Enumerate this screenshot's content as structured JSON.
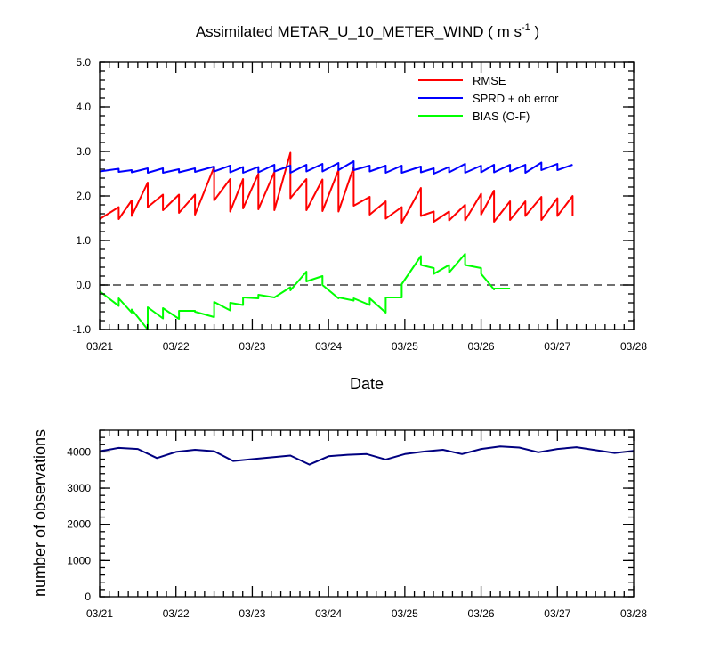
{
  "figure": {
    "title_main": "Assimilated METAR_U_10_METER_WIND ( m s",
    "title_sup": "-1",
    "title_end": " )"
  },
  "chart_data": [
    {
      "type": "line",
      "xlabel": "Date",
      "ylabel": "",
      "xlim": [
        0,
        7
      ],
      "ylim": [
        -1.0,
        5.0
      ],
      "x_tick_labels": [
        "03/21",
        "03/22",
        "03/23",
        "03/24",
        "03/25",
        "03/26",
        "03/27",
        "03/28"
      ],
      "y_tick_labels": [
        "-1.0",
        "0.0",
        "1.0",
        "2.0",
        "3.0",
        "4.0",
        "5.0"
      ],
      "legend_position": "top-right",
      "reference_line": {
        "y": 0.0,
        "style": "dashed",
        "color": "#404040"
      },
      "series": [
        {
          "name": "RMSE",
          "color": "#ff0000",
          "points": [
            [
              0.0,
              1.48
            ],
            [
              0.25,
              1.75
            ],
            [
              0.25,
              1.48
            ],
            [
              0.42,
              1.9
            ],
            [
              0.42,
              1.55
            ],
            [
              0.63,
              2.3
            ],
            [
              0.63,
              1.75
            ],
            [
              0.83,
              2.03
            ],
            [
              0.83,
              1.68
            ],
            [
              1.04,
              2.03
            ],
            [
              1.04,
              1.62
            ],
            [
              1.25,
              2.03
            ],
            [
              1.25,
              1.58
            ],
            [
              1.5,
              2.65
            ],
            [
              1.5,
              1.9
            ],
            [
              1.71,
              2.38
            ],
            [
              1.71,
              1.65
            ],
            [
              1.88,
              2.38
            ],
            [
              1.88,
              1.72
            ],
            [
              2.08,
              2.5
            ],
            [
              2.08,
              1.7
            ],
            [
              2.29,
              2.54
            ],
            [
              2.29,
              1.68
            ],
            [
              2.5,
              2.97
            ],
            [
              2.5,
              1.95
            ],
            [
              2.71,
              2.38
            ],
            [
              2.71,
              1.68
            ],
            [
              2.92,
              2.37
            ],
            [
              2.92,
              1.66
            ],
            [
              3.13,
              2.58
            ],
            [
              3.13,
              1.65
            ],
            [
              3.33,
              2.65
            ],
            [
              3.33,
              1.78
            ],
            [
              3.54,
              1.98
            ],
            [
              3.54,
              1.58
            ],
            [
              3.75,
              1.88
            ],
            [
              3.75,
              1.49
            ],
            [
              3.96,
              1.75
            ],
            [
              3.96,
              1.4
            ],
            [
              4.21,
              2.18
            ],
            [
              4.21,
              1.55
            ],
            [
              4.38,
              1.65
            ],
            [
              4.38,
              1.42
            ],
            [
              4.58,
              1.65
            ],
            [
              4.58,
              1.45
            ],
            [
              4.79,
              1.8
            ],
            [
              4.79,
              1.45
            ],
            [
              5.0,
              2.05
            ],
            [
              5.0,
              1.58
            ],
            [
              5.17,
              2.12
            ],
            [
              5.17,
              1.42
            ],
            [
              5.38,
              1.88
            ],
            [
              5.38,
              1.46
            ],
            [
              5.58,
              1.88
            ],
            [
              5.58,
              1.55
            ],
            [
              5.79,
              1.98
            ],
            [
              5.79,
              1.46
            ],
            [
              6.0,
              1.95
            ],
            [
              6.0,
              1.55
            ],
            [
              6.2,
              2.0
            ],
            [
              6.2,
              1.55
            ]
          ]
        },
        {
          "name": "SPRD + ob error",
          "color": "#0000ff",
          "points": [
            [
              0.0,
              2.55
            ],
            [
              0.25,
              2.61
            ],
            [
              0.25,
              2.54
            ],
            [
              0.42,
              2.58
            ],
            [
              0.42,
              2.53
            ],
            [
              0.63,
              2.62
            ],
            [
              0.63,
              2.52
            ],
            [
              0.83,
              2.62
            ],
            [
              0.83,
              2.52
            ],
            [
              1.04,
              2.6
            ],
            [
              1.04,
              2.53
            ],
            [
              1.25,
              2.62
            ],
            [
              1.25,
              2.54
            ],
            [
              1.5,
              2.66
            ],
            [
              1.5,
              2.55
            ],
            [
              1.71,
              2.68
            ],
            [
              1.71,
              2.53
            ],
            [
              1.88,
              2.65
            ],
            [
              1.88,
              2.52
            ],
            [
              2.08,
              2.65
            ],
            [
              2.08,
              2.53
            ],
            [
              2.29,
              2.7
            ],
            [
              2.29,
              2.55
            ],
            [
              2.5,
              2.68
            ],
            [
              2.5,
              2.52
            ],
            [
              2.71,
              2.7
            ],
            [
              2.71,
              2.55
            ],
            [
              2.92,
              2.72
            ],
            [
              2.92,
              2.55
            ],
            [
              3.13,
              2.74
            ],
            [
              3.13,
              2.58
            ],
            [
              3.33,
              2.78
            ],
            [
              3.33,
              2.58
            ],
            [
              3.54,
              2.68
            ],
            [
              3.54,
              2.55
            ],
            [
              3.75,
              2.68
            ],
            [
              3.75,
              2.52
            ],
            [
              3.96,
              2.68
            ],
            [
              3.96,
              2.52
            ],
            [
              4.21,
              2.66
            ],
            [
              4.21,
              2.53
            ],
            [
              4.38,
              2.62
            ],
            [
              4.38,
              2.5
            ],
            [
              4.58,
              2.65
            ],
            [
              4.58,
              2.53
            ],
            [
              4.79,
              2.72
            ],
            [
              4.79,
              2.52
            ],
            [
              5.0,
              2.68
            ],
            [
              5.0,
              2.53
            ],
            [
              5.17,
              2.7
            ],
            [
              5.17,
              2.53
            ],
            [
              5.38,
              2.7
            ],
            [
              5.38,
              2.55
            ],
            [
              5.58,
              2.7
            ],
            [
              5.58,
              2.52
            ],
            [
              5.79,
              2.75
            ],
            [
              5.79,
              2.58
            ],
            [
              6.0,
              2.72
            ],
            [
              6.0,
              2.58
            ],
            [
              6.2,
              2.7
            ]
          ]
        },
        {
          "name": "BIAS (O-F)",
          "color": "#00ff00",
          "points": [
            [
              0.0,
              -0.14
            ],
            [
              0.25,
              -0.47
            ],
            [
              0.25,
              -0.3
            ],
            [
              0.42,
              -0.62
            ],
            [
              0.42,
              -0.55
            ],
            [
              0.63,
              -1.0
            ],
            [
              0.63,
              -0.5
            ],
            [
              0.83,
              -0.75
            ],
            [
              0.83,
              -0.52
            ],
            [
              1.04,
              -0.76
            ],
            [
              1.04,
              -0.58
            ],
            [
              1.25,
              -0.58
            ],
            [
              1.25,
              -0.6
            ],
            [
              1.5,
              -0.72
            ],
            [
              1.5,
              -0.38
            ],
            [
              1.71,
              -0.57
            ],
            [
              1.71,
              -0.4
            ],
            [
              1.88,
              -0.45
            ],
            [
              1.88,
              -0.28
            ],
            [
              2.08,
              -0.3
            ],
            [
              2.08,
              -0.22
            ],
            [
              2.29,
              -0.28
            ],
            [
              2.29,
              -0.28
            ],
            [
              2.5,
              -0.05
            ],
            [
              2.5,
              -0.12
            ],
            [
              2.71,
              0.3
            ],
            [
              2.71,
              0.08
            ],
            [
              2.92,
              0.2
            ],
            [
              2.92,
              0.0
            ],
            [
              3.13,
              -0.3
            ],
            [
              3.13,
              -0.28
            ],
            [
              3.33,
              -0.35
            ],
            [
              3.33,
              -0.3
            ],
            [
              3.54,
              -0.45
            ],
            [
              3.54,
              -0.3
            ],
            [
              3.75,
              -0.62
            ],
            [
              3.75,
              -0.28
            ],
            [
              3.96,
              -0.28
            ],
            [
              3.96,
              0.02
            ],
            [
              4.21,
              0.65
            ],
            [
              4.21,
              0.45
            ],
            [
              4.38,
              0.38
            ],
            [
              4.38,
              0.25
            ],
            [
              4.58,
              0.45
            ],
            [
              4.58,
              0.28
            ],
            [
              4.79,
              0.7
            ],
            [
              4.79,
              0.45
            ],
            [
              5.0,
              0.38
            ],
            [
              5.0,
              0.25
            ],
            [
              5.17,
              -0.1
            ],
            [
              5.17,
              -0.08
            ],
            [
              5.38,
              -0.08
            ]
          ]
        }
      ]
    },
    {
      "type": "line",
      "xlabel": "",
      "ylabel": "number of observations",
      "xlim": [
        0,
        7
      ],
      "ylim": [
        0,
        4600
      ],
      "x_tick_labels": [
        "03/21",
        "03/22",
        "03/23",
        "03/24",
        "03/25",
        "03/26",
        "03/27",
        "03/28"
      ],
      "y_tick_labels": [
        "0",
        "1000",
        "2000",
        "3000",
        "4000"
      ],
      "series": [
        {
          "color": "#000080",
          "points": [
            [
              0.0,
              4020
            ],
            [
              0.25,
              4110
            ],
            [
              0.5,
              4080
            ],
            [
              0.75,
              3830
            ],
            [
              1.0,
              4000
            ],
            [
              1.25,
              4060
            ],
            [
              1.5,
              4020
            ],
            [
              1.75,
              3750
            ],
            [
              2.0,
              3800
            ],
            [
              2.25,
              3850
            ],
            [
              2.5,
              3900
            ],
            [
              2.75,
              3650
            ],
            [
              3.0,
              3880
            ],
            [
              3.25,
              3920
            ],
            [
              3.5,
              3940
            ],
            [
              3.75,
              3790
            ],
            [
              4.0,
              3940
            ],
            [
              4.25,
              4010
            ],
            [
              4.5,
              4060
            ],
            [
              4.75,
              3940
            ],
            [
              5.0,
              4080
            ],
            [
              5.25,
              4150
            ],
            [
              5.5,
              4120
            ],
            [
              5.75,
              3990
            ],
            [
              6.0,
              4080
            ],
            [
              6.25,
              4130
            ],
            [
              6.5,
              4050
            ],
            [
              6.75,
              3970
            ],
            [
              7.0,
              4030
            ]
          ]
        }
      ]
    }
  ]
}
